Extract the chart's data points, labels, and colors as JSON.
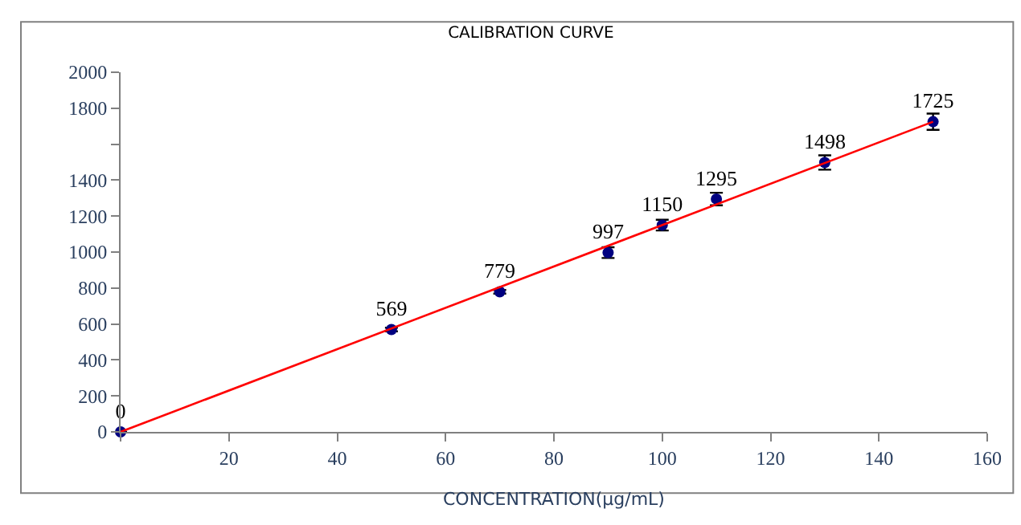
{
  "chart_data": {
    "type": "scatter",
    "title": "CALIBRATION CURVE",
    "xlabel": "CONCENTRATION(μg/mL)",
    "x": [
      0,
      50,
      70,
      90,
      100,
      110,
      130,
      150
    ],
    "series": [
      {
        "color": "#000080",
        "values": [
          0,
          569,
          779,
          997,
          1150,
          1295,
          1498,
          1725
        ],
        "value_labels": [
          "0",
          "569",
          "779",
          "997",
          "1150",
          "1295",
          "1498",
          "1725"
        ],
        "errors": [
          null,
          10,
          10,
          30,
          30,
          35,
          40,
          45
        ],
        "marker": "circle"
      },
      {
        "type": "line",
        "color": "#ff0000",
        "x": [
          0,
          150
        ],
        "values": [
          0,
          1725
        ],
        "line_style": "solid"
      }
    ],
    "xlim": [
      0,
      160
    ],
    "xticks": [
      {
        "value": 0,
        "label": null
      },
      20,
      40,
      60,
      80,
      100,
      120,
      140,
      160
    ],
    "ylim": [
      0,
      2000
    ],
    "yticks": [
      0,
      200,
      400,
      600,
      800,
      1000,
      1200,
      1400,
      {
        "value": 1600,
        "label": null
      },
      1800,
      2000
    ],
    "tick_labels": true
  }
}
